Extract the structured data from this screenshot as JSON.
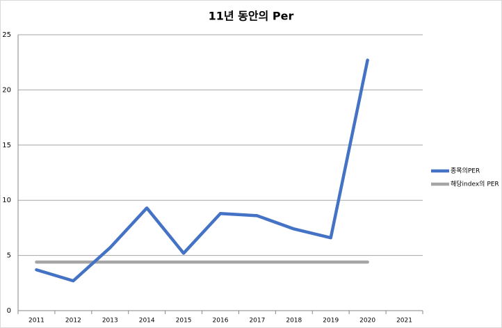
{
  "chart_data": {
    "type": "line",
    "title": "11년 동안의 Per",
    "categories": [
      "2011",
      "2012",
      "2013",
      "2014",
      "2015",
      "2016",
      "2017",
      "2018",
      "2019",
      "2020",
      "2021"
    ],
    "series": [
      {
        "name": "종목의PER",
        "color": "#4472c4",
        "values": [
          3.7,
          2.7,
          5.7,
          9.3,
          5.2,
          8.8,
          8.6,
          7.4,
          6.6,
          22.7,
          null
        ]
      },
      {
        "name": "해당index의 PER",
        "color": "#a5a5a5",
        "values": [
          4.4,
          4.4,
          4.4,
          4.4,
          4.4,
          4.4,
          4.4,
          4.4,
          4.4,
          4.4,
          null
        ]
      }
    ],
    "ylim": [
      0,
      25
    ],
    "yticks": [
      0,
      5,
      10,
      15,
      20,
      25
    ],
    "grid": true,
    "legend": "right"
  }
}
